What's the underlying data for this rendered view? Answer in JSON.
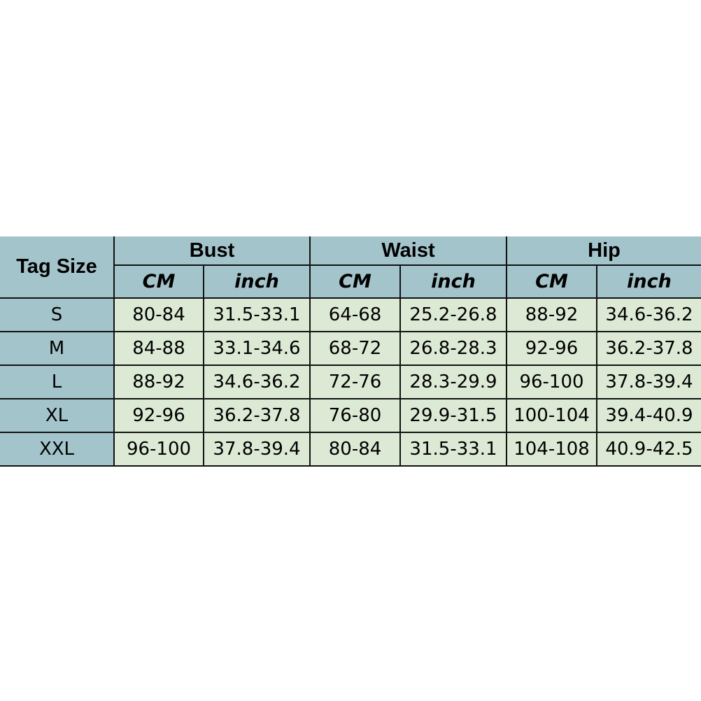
{
  "table": {
    "tag_header": "Tag Size",
    "groups": [
      "Bust",
      "Waist",
      "Hip"
    ],
    "units": [
      "CM",
      "inch",
      "CM",
      "inch",
      "CM",
      "inch"
    ],
    "rows": [
      [
        "S",
        "80-84",
        "31.5-33.1",
        "64-68",
        "25.2-26.8",
        "88-92",
        "34.6-36.2"
      ],
      [
        "M",
        "84-88",
        "33.1-34.6",
        "68-72",
        "26.8-28.3",
        "92-96",
        "36.2-37.8"
      ],
      [
        "L",
        "88-92",
        "34.6-36.2",
        "72-76",
        "28.3-29.9",
        "96-100",
        "37.8-39.4"
      ],
      [
        "XL",
        "92-96",
        "36.2-37.8",
        "76-80",
        "29.9-31.5",
        "100-104",
        "39.4-40.9"
      ],
      [
        "XXL",
        "96-100",
        "37.8-39.4",
        "80-84",
        "31.5-33.1",
        "104-108",
        "40.9-42.5"
      ]
    ]
  },
  "colors": {
    "header": "#a3c4cb",
    "cell": "#dcead5",
    "border": "#111111"
  }
}
